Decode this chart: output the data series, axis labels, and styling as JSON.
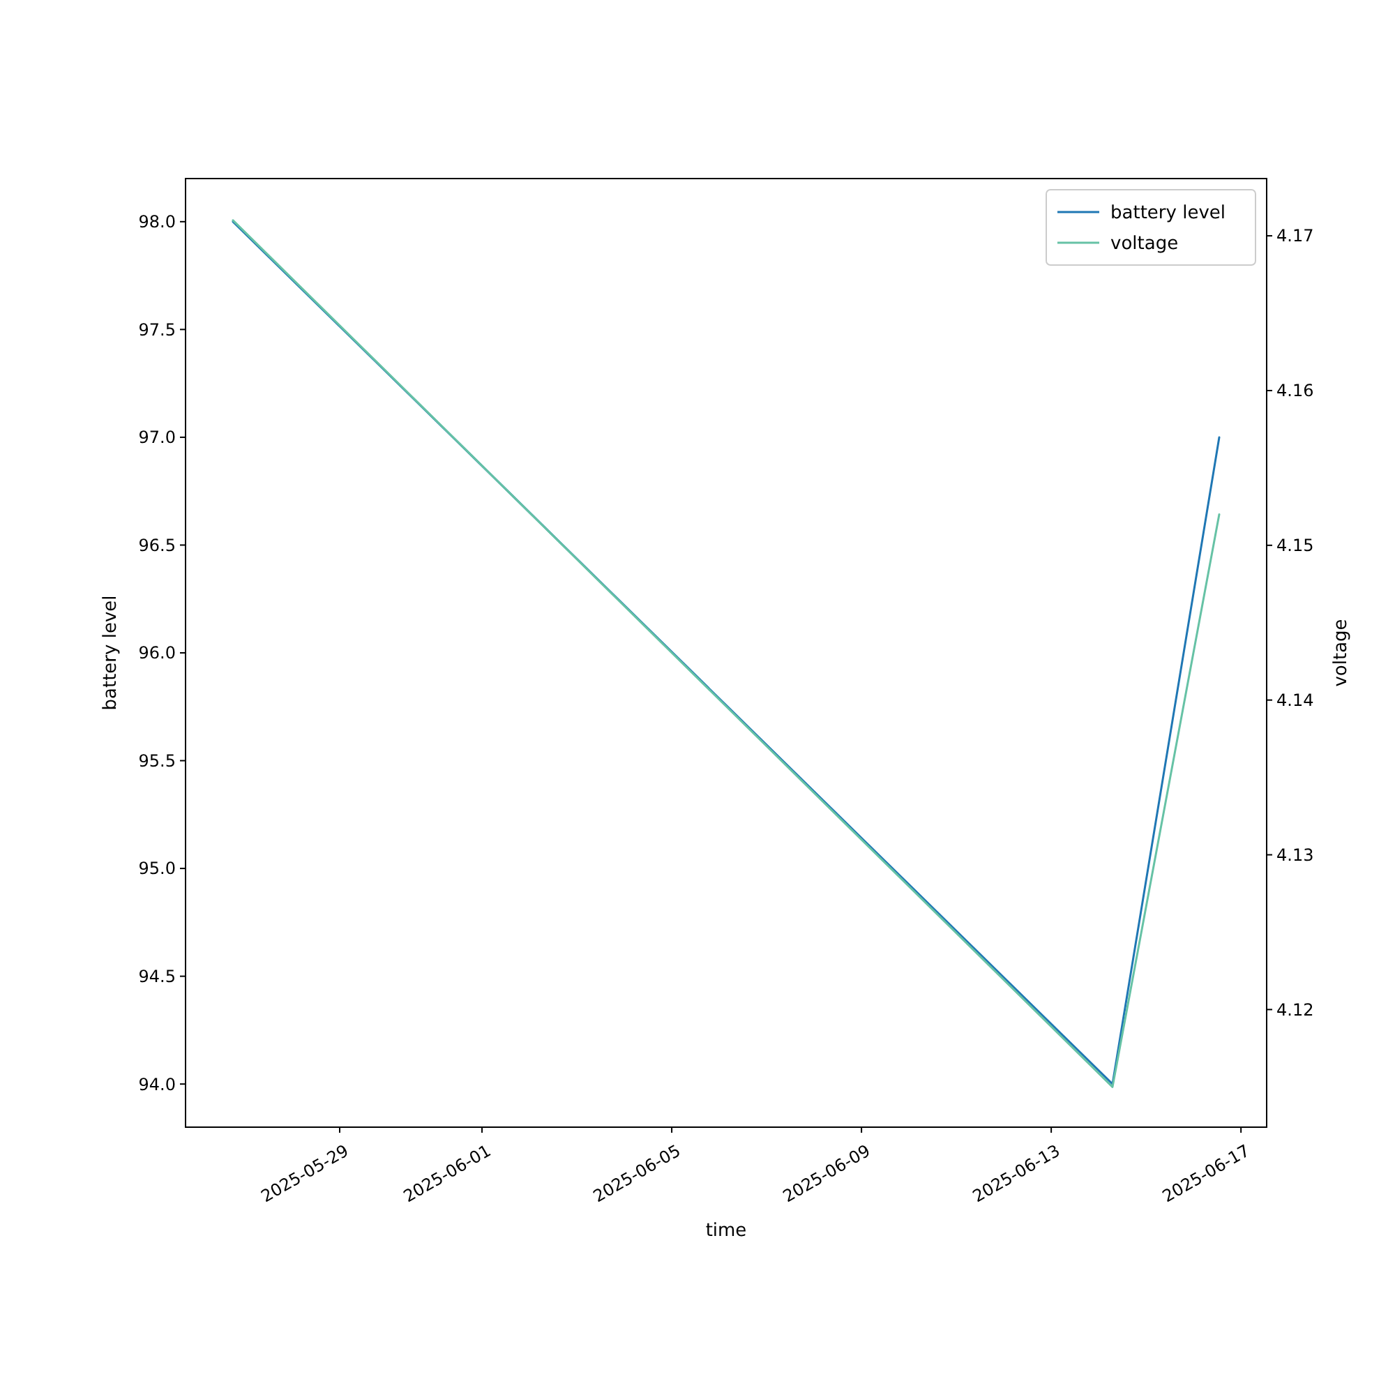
{
  "chart_data": {
    "type": "line",
    "xlabel": "time",
    "ylabel": "battery level",
    "y2label": "voltage",
    "x": [
      "2025-05-26T18:00",
      "2025-06-14T07:00",
      "2025-06-16T13:00"
    ],
    "series": [
      {
        "name": "battery level",
        "color": "#1f77b4",
        "values": [
          98,
          94,
          97
        ]
      },
      {
        "name": "voltage",
        "color": "#66c2a5",
        "values": [
          4.171,
          4.115,
          4.152
        ],
        "axis": "y2"
      }
    ],
    "xlim": [
      "2025-05-25T18:00",
      "2025-06-17T13:00"
    ],
    "xticks": [
      "2025-05-29",
      "2025-06-01",
      "2025-06-05",
      "2025-06-09",
      "2025-06-13",
      "2025-06-17"
    ],
    "ylim": [
      93.8,
      98.2
    ],
    "yticks": [
      {
        "value": 94,
        "label": "94.0"
      },
      {
        "value": 94.5,
        "label": "94.5"
      },
      {
        "value": 95,
        "label": "95.0"
      },
      {
        "value": 95.5,
        "label": "95.5"
      },
      {
        "value": 96,
        "label": "96.0"
      },
      {
        "value": 96.5,
        "label": "96.5"
      },
      {
        "value": 97,
        "label": "97.0"
      },
      {
        "value": 97.5,
        "label": "97.5"
      },
      {
        "value": 98,
        "label": "98.0"
      }
    ],
    "y2lim": [
      4.1124,
      4.1737
    ],
    "y2ticks": [
      4.12,
      4.13,
      4.14,
      4.15,
      4.16,
      4.17
    ],
    "legend": "top right",
    "grid": false,
    "marker": "none",
    "line_style": "solid"
  }
}
